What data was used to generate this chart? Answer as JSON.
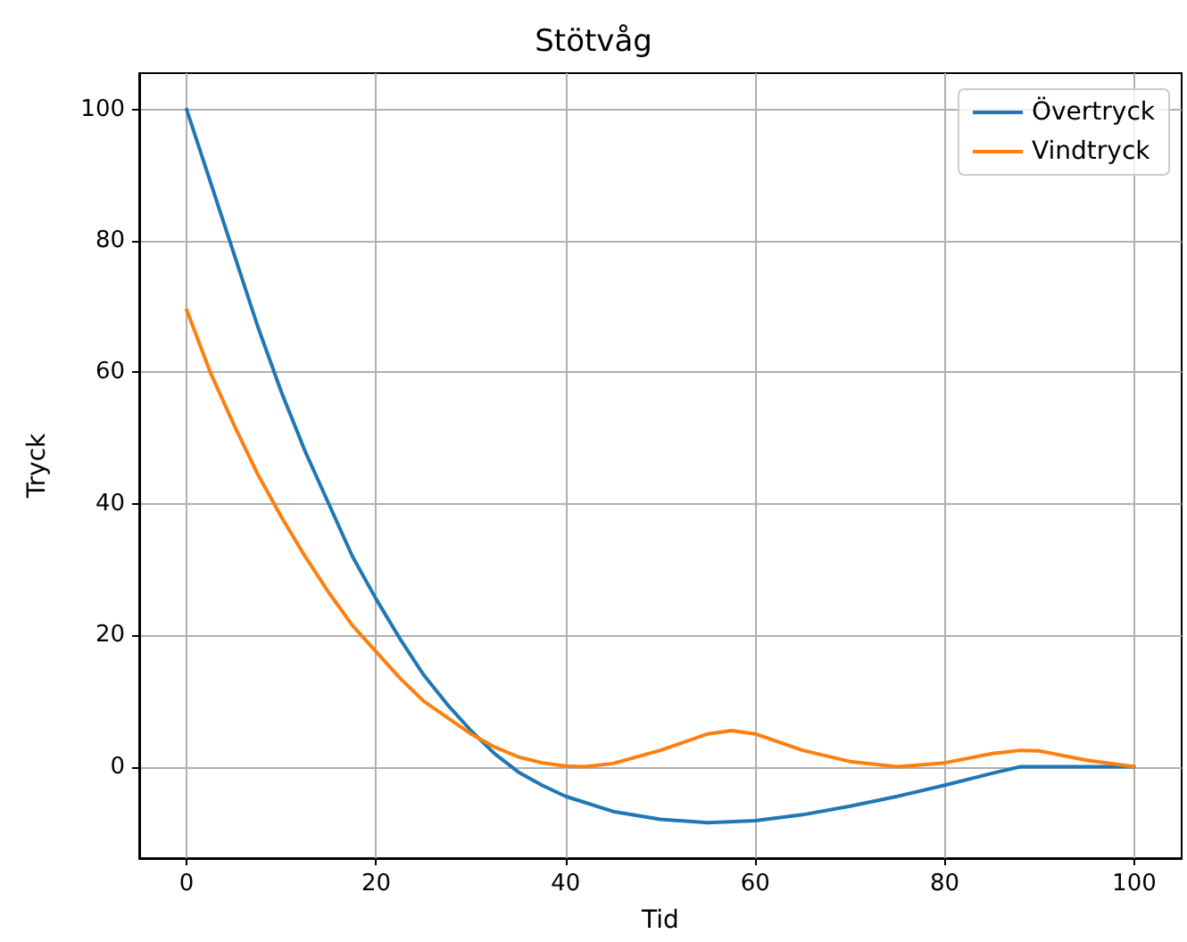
{
  "chart_data": {
    "type": "line",
    "title": "Stötvåg",
    "xlabel": "Tid",
    "ylabel": "Tryck",
    "xlim": [
      -5,
      105
    ],
    "xticks": [
      0,
      20,
      40,
      60,
      80,
      100
    ],
    "ylim": [
      -13.9,
      105.5
    ],
    "yticks": [
      0,
      20,
      40,
      60,
      80,
      100
    ],
    "grid": true,
    "legend": "top right",
    "marker": "none",
    "line_style": "solid",
    "series": [
      {
        "name": "Övertryck",
        "color": "#1f77b4",
        "x": [
          0,
          2.5,
          5,
          7.5,
          10,
          12.5,
          15,
          17.5,
          20,
          22.5,
          25,
          27.5,
          30,
          32.5,
          35,
          37.5,
          40,
          45,
          50,
          55,
          60,
          65,
          70,
          75,
          80,
          85,
          88,
          90,
          100
        ],
        "values": [
          100,
          89,
          78,
          67,
          57,
          48,
          40,
          32,
          25.5,
          19.5,
          14,
          9.5,
          5.5,
          2,
          -0.8,
          -2.8,
          -4.5,
          -6.8,
          -8,
          -8.5,
          -8.2,
          -7.3,
          -6,
          -4.5,
          -2.8,
          -1,
          0,
          0,
          0
        ]
      },
      {
        "name": "Vindtryck",
        "color": "#ff7f0e",
        "x": [
          0,
          2.5,
          5,
          7.5,
          10,
          12.5,
          15,
          17.5,
          20,
          22.5,
          25,
          27.5,
          30,
          32.5,
          35,
          37.5,
          40,
          42,
          45,
          50,
          55,
          57.5,
          60,
          65,
          70,
          75,
          80,
          85,
          88,
          90,
          95,
          100
        ],
        "values": [
          69.5,
          60,
          52,
          44.5,
          38,
          32,
          26.5,
          21.5,
          17.5,
          13.5,
          10,
          7.5,
          5,
          3,
          1.5,
          0.6,
          0.1,
          0,
          0.5,
          2.5,
          5,
          5.5,
          5,
          2.5,
          0.8,
          0,
          0.6,
          2,
          2.5,
          2.4,
          1,
          0
        ]
      }
    ]
  }
}
